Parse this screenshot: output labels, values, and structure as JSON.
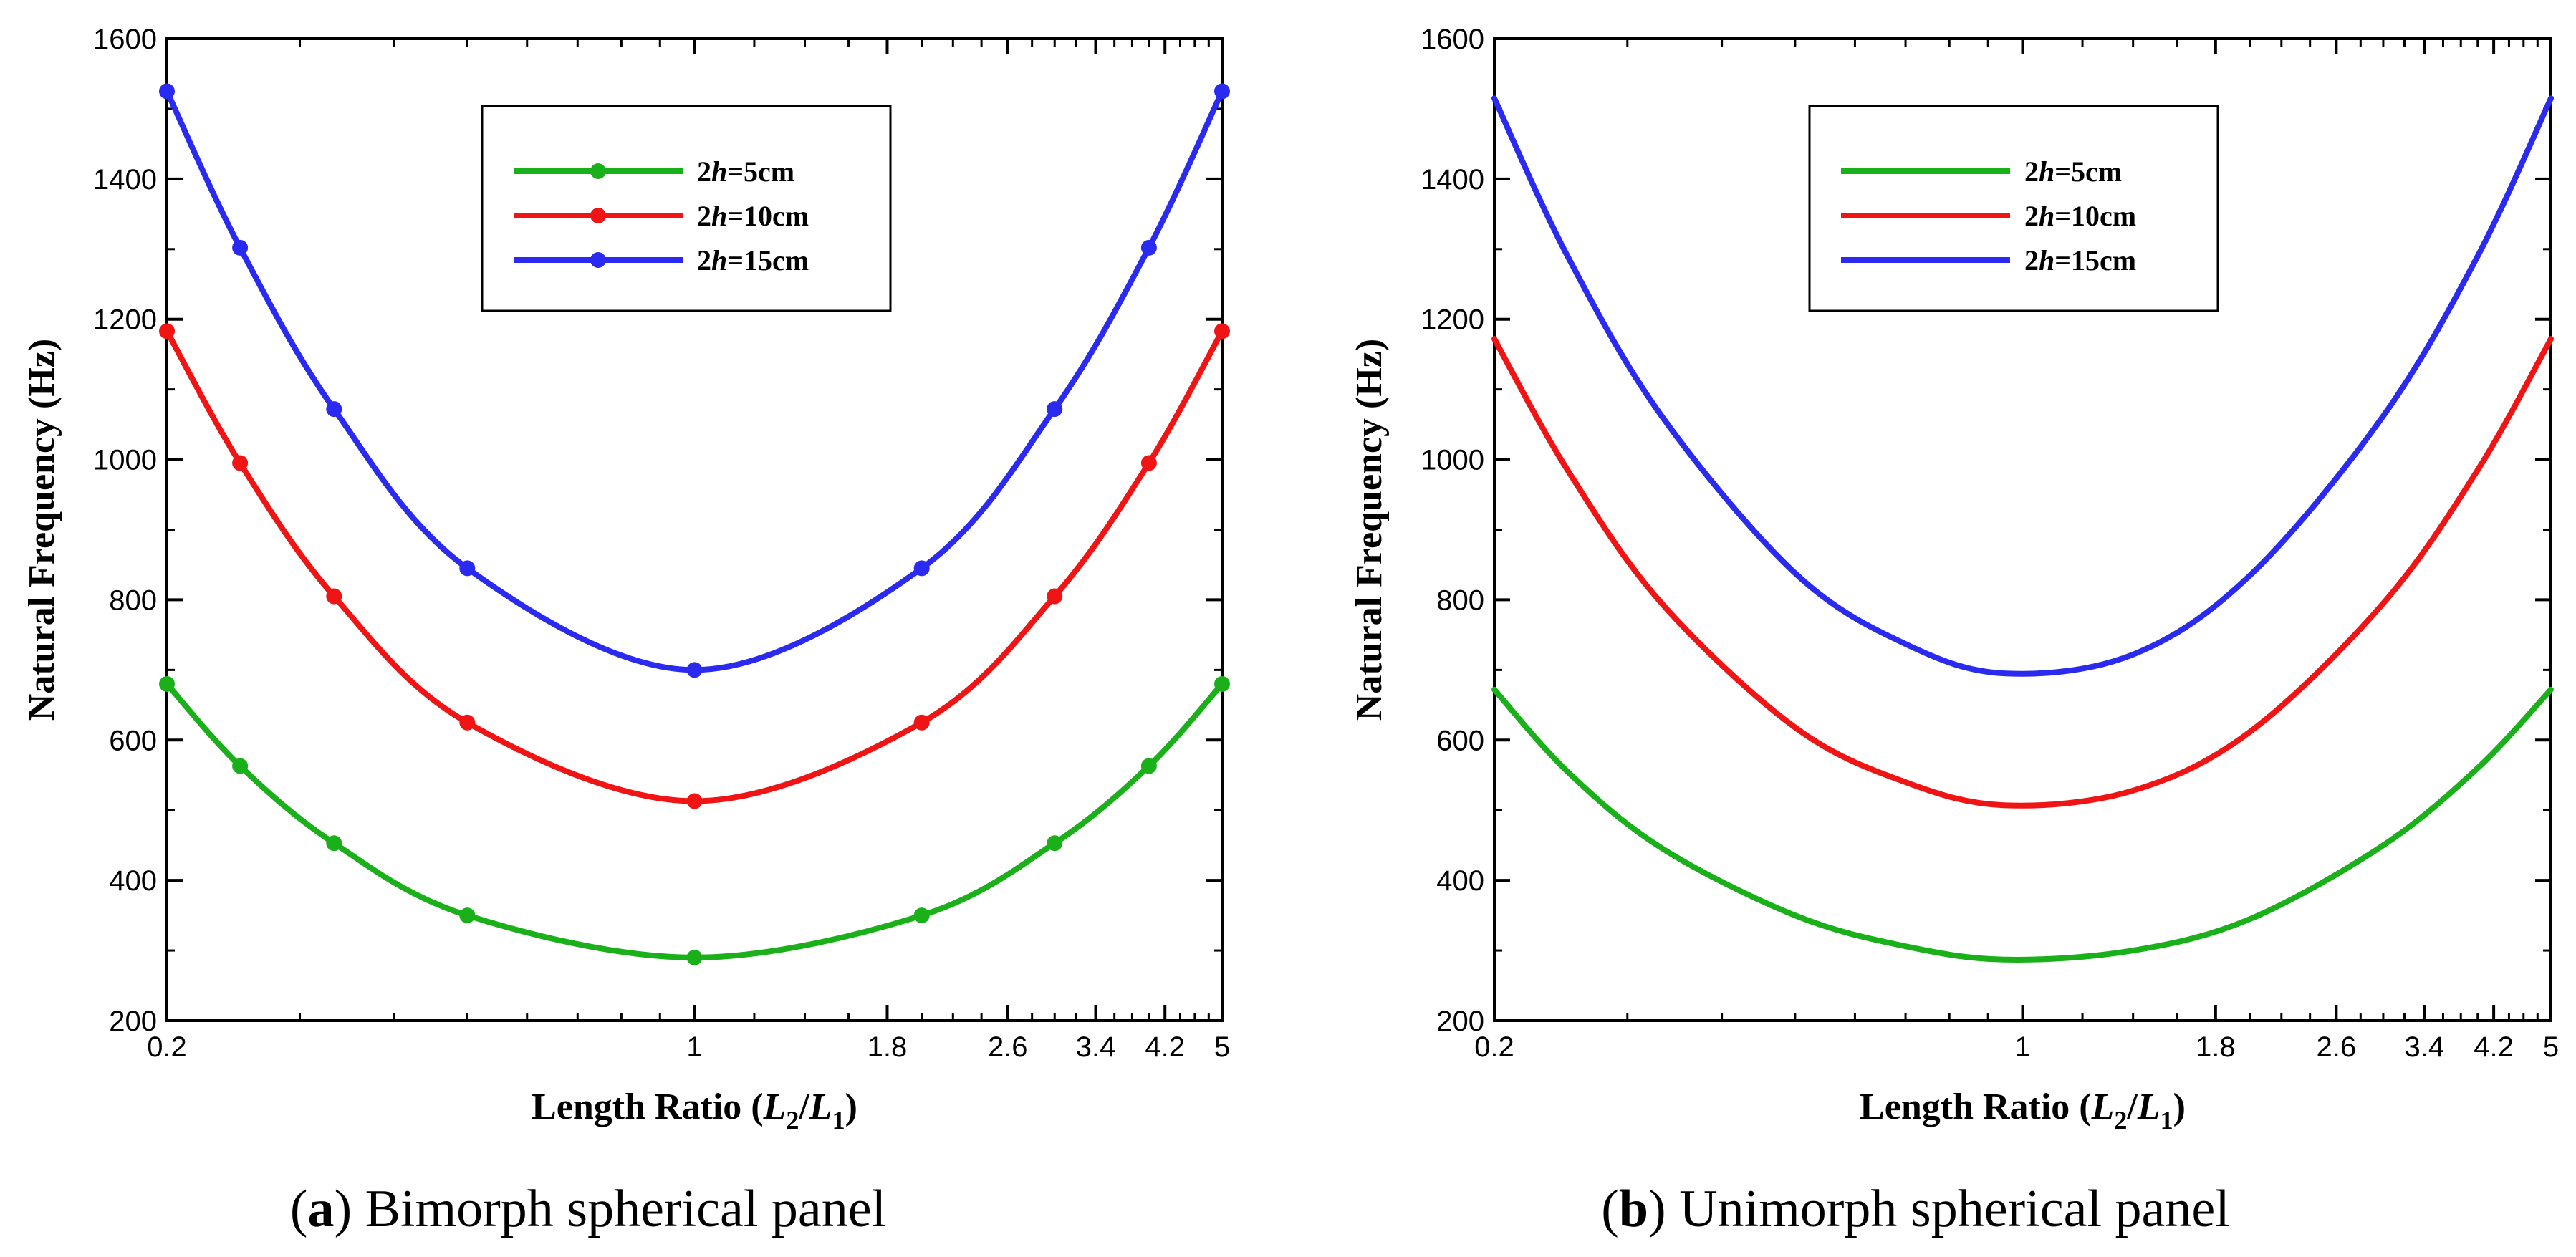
{
  "chart_data": [
    {
      "type": "line",
      "caption_letter": "a",
      "caption_text": "Bimorph spherical panel",
      "xlabel_prefix": "Length Ratio (",
      "xlabel_L2": "L",
      "xlabel_sub2": "2",
      "xlabel_slash": "/",
      "xlabel_L1": "L",
      "xlabel_sub1": "1",
      "xlabel_suffix": ")",
      "ylabel": "Natural Frequency (Hz)",
      "xscale": "log",
      "xlim": [
        0.2,
        5
      ],
      "ylim": [
        200,
        1600
      ],
      "xticks": [
        0.2,
        1,
        1.8,
        2.6,
        3.4,
        4.2,
        5
      ],
      "xtick_labels": [
        "0.2",
        "1",
        "1.8",
        "2.6",
        "3.4",
        "4.2",
        "5"
      ],
      "yticks": [
        200,
        400,
        600,
        800,
        1000,
        1200,
        1400,
        1600
      ],
      "ytick_labels": [
        "200",
        "400",
        "600",
        "800",
        "1000",
        "1200",
        "1400",
        "1600"
      ],
      "markers": true,
      "legend_position": "top-center",
      "series": [
        {
          "label_prefix": "2",
          "label_h": "h",
          "label_suffix": "=5cm",
          "color": "#1ab01a",
          "x": [
            0.2,
            0.25,
            0.333,
            0.5,
            1,
            2,
            3,
            4,
            5
          ],
          "y": [
            680,
            563,
            453,
            350,
            290,
            350,
            453,
            563,
            680
          ]
        },
        {
          "label_prefix": "2",
          "label_h": "h",
          "label_suffix": "=10cm",
          "color": "#f01414",
          "x": [
            0.2,
            0.25,
            0.333,
            0.5,
            1,
            2,
            3,
            4,
            5
          ],
          "y": [
            1183,
            995,
            805,
            625,
            513,
            625,
            805,
            995,
            1183
          ]
        },
        {
          "label_prefix": "2",
          "label_h": "h",
          "label_suffix": "=15cm",
          "color": "#2a2af0",
          "x": [
            0.2,
            0.25,
            0.333,
            0.5,
            1,
            2,
            3,
            4,
            5
          ],
          "y": [
            1525,
            1302,
            1072,
            845,
            700,
            845,
            1072,
            1302,
            1525
          ]
        }
      ]
    },
    {
      "type": "line",
      "caption_letter": "b",
      "caption_text": "Unimorph spherical panel",
      "xlabel_prefix": "Length Ratio (",
      "xlabel_L2": "L",
      "xlabel_sub2": "2",
      "xlabel_slash": "/",
      "xlabel_L1": "L",
      "xlabel_sub1": "1",
      "xlabel_suffix": ")",
      "ylabel": "Natural Frequency (Hz)",
      "xscale": "log",
      "xlim": [
        0.2,
        5
      ],
      "ylim": [
        200,
        1600
      ],
      "xticks": [
        0.2,
        1,
        1.8,
        2.6,
        3.4,
        4.2,
        5
      ],
      "xtick_labels": [
        "0.2",
        "1",
        "1.8",
        "2.6",
        "3.4",
        "4.2",
        "5"
      ],
      "yticks": [
        200,
        400,
        600,
        800,
        1000,
        1200,
        1400,
        1600
      ],
      "ytick_labels": [
        "200",
        "400",
        "600",
        "800",
        "1000",
        "1200",
        "1400",
        "1600"
      ],
      "markers": false,
      "legend_position": "top-center",
      "series": [
        {
          "label_prefix": "2",
          "label_h": "h",
          "label_suffix": "=5cm",
          "color": "#1ab01a",
          "x": [
            0.2,
            0.25,
            0.333,
            0.5,
            0.7,
            0.95,
            1.4,
            2,
            3,
            4,
            5
          ],
          "y": [
            672,
            555,
            446,
            350,
            306,
            287,
            300,
            345,
            450,
            560,
            672
          ]
        },
        {
          "label_prefix": "2",
          "label_h": "h",
          "label_suffix": "=10cm",
          "color": "#f01414",
          "x": [
            0.2,
            0.25,
            0.333,
            0.5,
            0.7,
            0.95,
            1.4,
            2,
            3,
            4,
            5
          ],
          "y": [
            1172,
            985,
            795,
            618,
            540,
            507,
            528,
            612,
            795,
            985,
            1172
          ]
        },
        {
          "label_prefix": "2",
          "label_h": "h",
          "label_suffix": "=15cm",
          "color": "#2a2af0",
          "x": [
            0.2,
            0.25,
            0.333,
            0.5,
            0.7,
            0.95,
            1.4,
            2,
            3,
            4,
            5
          ],
          "y": [
            1515,
            1290,
            1062,
            838,
            737,
            695,
            722,
            835,
            1062,
            1290,
            1515
          ]
        }
      ]
    }
  ]
}
